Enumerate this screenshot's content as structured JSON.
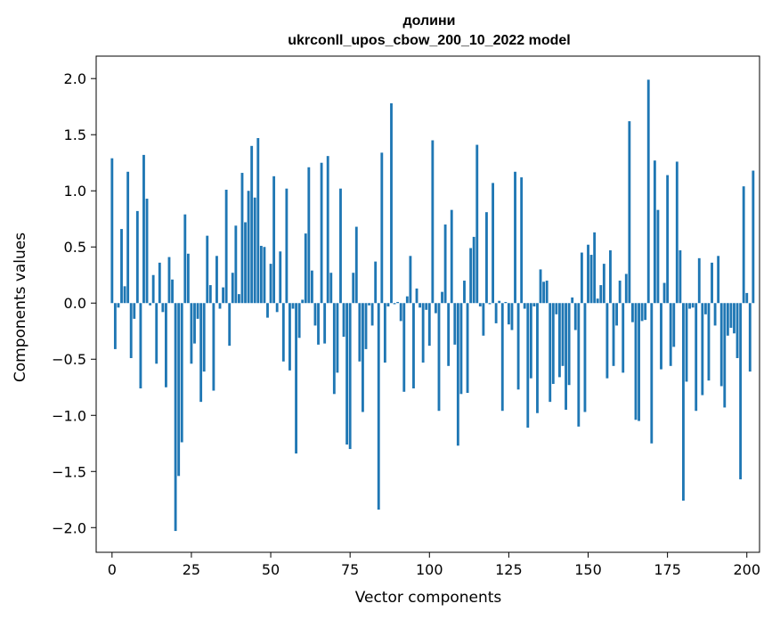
{
  "chart_data": {
    "type": "bar",
    "title": "долини",
    "subtitle": "ukrconll_upos_cbow_200_10_2022 model",
    "xlabel": "Vector components",
    "ylabel": "Components values",
    "xlim": [
      -5,
      204
    ],
    "ylim": [
      -2.22,
      2.2
    ],
    "xticks": [
      0,
      25,
      50,
      75,
      100,
      125,
      150,
      175,
      200
    ],
    "yticks": [
      -2.0,
      -1.5,
      -1.0,
      -0.5,
      0.0,
      0.5,
      1.0,
      1.5,
      2.0
    ],
    "grid": false,
    "bar_color": "#1f77b4",
    "values": [
      1.29,
      -0.41,
      -0.04,
      0.66,
      0.15,
      1.17,
      -0.49,
      -0.14,
      0.82,
      -0.76,
      1.32,
      0.93,
      -0.02,
      0.25,
      -0.54,
      0.36,
      -0.08,
      -0.75,
      0.41,
      0.21,
      -2.03,
      -1.54,
      -1.24,
      0.79,
      0.44,
      -0.54,
      -0.36,
      -0.14,
      -0.88,
      -0.61,
      0.6,
      0.16,
      -0.78,
      0.42,
      -0.05,
      0.14,
      1.01,
      -0.38,
      0.27,
      0.69,
      0.08,
      1.16,
      0.72,
      1.0,
      1.4,
      0.94,
      1.47,
      0.51,
      0.5,
      -0.13,
      0.35,
      1.13,
      -0.08,
      0.46,
      -0.52,
      1.02,
      -0.6,
      -0.05,
      -1.34,
      -0.31,
      0.03,
      0.62,
      1.21,
      0.29,
      -0.2,
      -0.37,
      1.25,
      -0.36,
      1.31,
      0.27,
      -0.81,
      -0.62,
      1.02,
      -0.3,
      -1.26,
      -1.3,
      0.27,
      0.68,
      -0.52,
      -0.97,
      -0.41,
      -0.02,
      -0.2,
      0.37,
      -1.84,
      1.34,
      -0.53,
      -0.03,
      1.78,
      -0.01,
      0.01,
      -0.16,
      -0.79,
      0.06,
      0.42,
      -0.76,
      0.13,
      -0.04,
      -0.53,
      -0.06,
      -0.38,
      1.45,
      -0.09,
      -0.96,
      0.1,
      0.7,
      -0.56,
      0.83,
      -0.37,
      -1.27,
      -0.81,
      0.2,
      -0.8,
      0.49,
      0.59,
      1.41,
      -0.03,
      -0.29,
      0.81,
      -0.01,
      1.07,
      -0.18,
      0.02,
      -0.96,
      0.01,
      -0.19,
      -0.24,
      1.17,
      -0.77,
      1.12,
      -0.05,
      -1.11,
      -0.67,
      -0.03,
      -0.98,
      0.3,
      0.19,
      0.2,
      -0.88,
      -0.72,
      -0.1,
      -0.66,
      -0.56,
      -0.95,
      -0.73,
      0.05,
      -0.24,
      -1.1,
      0.45,
      -0.97,
      0.52,
      0.43,
      0.63,
      0.04,
      0.16,
      0.35,
      -0.67,
      0.47,
      -0.56,
      -0.2,
      0.2,
      -0.62,
      0.26,
      1.62,
      -0.17,
      -1.04,
      -1.05,
      -0.16,
      -0.15,
      1.99,
      -1.25,
      1.27,
      0.83,
      -0.59,
      0.18,
      1.14,
      -0.56,
      -0.39,
      1.26,
      0.47,
      -1.76,
      -0.7,
      -0.05,
      -0.04,
      -0.96,
      0.4,
      -0.82,
      -0.1,
      -0.69,
      0.36,
      -0.2,
      0.42,
      -0.74,
      -0.93,
      -0.29,
      -0.22,
      -0.27,
      -0.49,
      -1.57,
      1.04,
      0.09,
      -0.61,
      1.18
    ]
  }
}
